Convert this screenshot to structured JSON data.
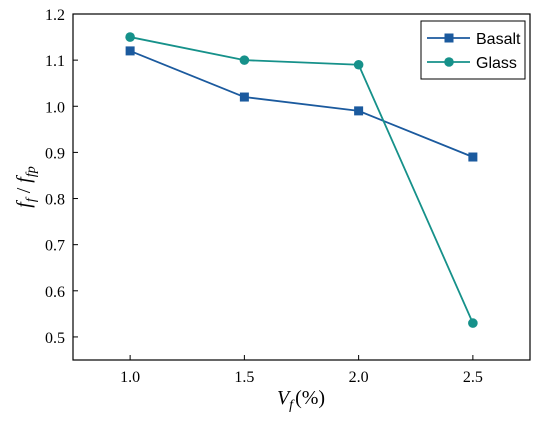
{
  "chart_data": {
    "type": "line",
    "x": [
      1.0,
      1.5,
      2.0,
      2.5
    ],
    "x_ticks": [
      "1.0",
      "1.5",
      "2.0",
      "2.5"
    ],
    "y_ticks": [
      "0.5",
      "0.6",
      "0.7",
      "0.8",
      "0.9",
      "1.0",
      "1.1",
      "1.2"
    ],
    "xlim": [
      0.75,
      2.75
    ],
    "ylim": [
      0.45,
      1.2
    ],
    "xlabel": {
      "base": "V",
      "sub": "f",
      "suffix": "(%)"
    },
    "ylabel": {
      "part1": "f",
      "sub1": "f",
      "sep": " / ",
      "part2": "f",
      "sub2": "fp"
    },
    "grid": false,
    "legend_position": "top-right",
    "series": [
      {
        "name": "Basalt",
        "values": [
          1.12,
          1.02,
          0.99,
          0.89
        ],
        "color": "#1b5a9e",
        "marker": "square"
      },
      {
        "name": "Glass",
        "values": [
          1.15,
          1.1,
          1.09,
          0.53
        ],
        "color": "#16918a",
        "marker": "circle"
      }
    ]
  }
}
